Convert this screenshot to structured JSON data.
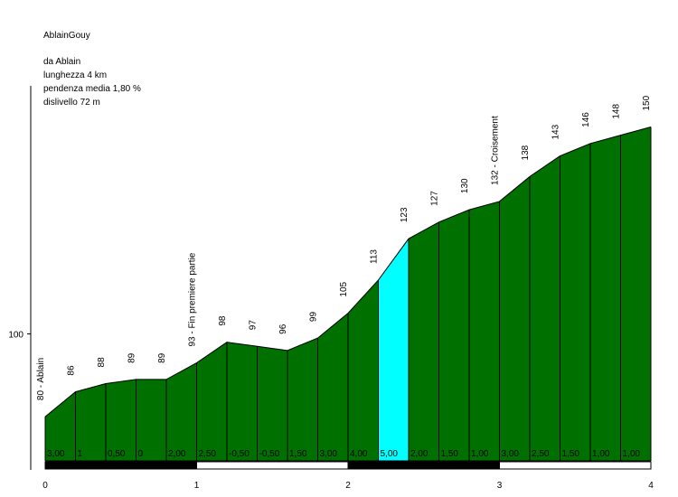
{
  "info": {
    "title": "AblainGouy",
    "start": "da Ablain",
    "length": "lunghezza 4 km",
    "avg_grade": "pendenza media 1,80 %",
    "elevation_gain": "dislivello 72 m"
  },
  "colors": {
    "segment_fill": "#007000",
    "highlight_fill": "#00ffff",
    "stroke": "#000000"
  },
  "chart_data": {
    "type": "area",
    "x_unit": "km",
    "xlim": [
      0,
      4
    ],
    "ylim": [
      70,
      155
    ],
    "y_ticks": [
      100
    ],
    "x_ticks": [
      0,
      1,
      2,
      3,
      4
    ],
    "points": [
      {
        "x": 0.0,
        "y": 80,
        "label": "80 - Ablain"
      },
      {
        "x": 0.2,
        "y": 86,
        "label": "86"
      },
      {
        "x": 0.4,
        "y": 88,
        "label": "88"
      },
      {
        "x": 0.6,
        "y": 89,
        "label": "89"
      },
      {
        "x": 0.8,
        "y": 89,
        "label": "89"
      },
      {
        "x": 1.0,
        "y": 93,
        "label": "93 - Fin premiere partie"
      },
      {
        "x": 1.2,
        "y": 98,
        "label": "98"
      },
      {
        "x": 1.4,
        "y": 97,
        "label": "97"
      },
      {
        "x": 1.6,
        "y": 96,
        "label": "96"
      },
      {
        "x": 1.8,
        "y": 99,
        "label": "99"
      },
      {
        "x": 2.0,
        "y": 105,
        "label": "105"
      },
      {
        "x": 2.2,
        "y": 113,
        "label": "113"
      },
      {
        "x": 2.4,
        "y": 123,
        "label": "123"
      },
      {
        "x": 2.6,
        "y": 127,
        "label": "127"
      },
      {
        "x": 2.8,
        "y": 130,
        "label": "130"
      },
      {
        "x": 3.0,
        "y": 132,
        "label": "132 - Croisement"
      },
      {
        "x": 3.2,
        "y": 138,
        "label": "138"
      },
      {
        "x": 3.4,
        "y": 143,
        "label": "143"
      },
      {
        "x": 3.6,
        "y": 146,
        "label": "146"
      },
      {
        "x": 3.8,
        "y": 148,
        "label": "148"
      },
      {
        "x": 4.0,
        "y": 150,
        "label": "150"
      }
    ],
    "segment_grades": [
      "3,00",
      "1",
      "0,50",
      "0",
      "2,00",
      "2,50",
      "-0,50",
      "-0,50",
      "1,50",
      "3,00",
      "4,00",
      "5,00",
      "2,00",
      "1,50",
      "1,00",
      "3,00",
      "2,50",
      "1,50",
      "1,00",
      "1,00"
    ],
    "highlight_segment": 11
  }
}
